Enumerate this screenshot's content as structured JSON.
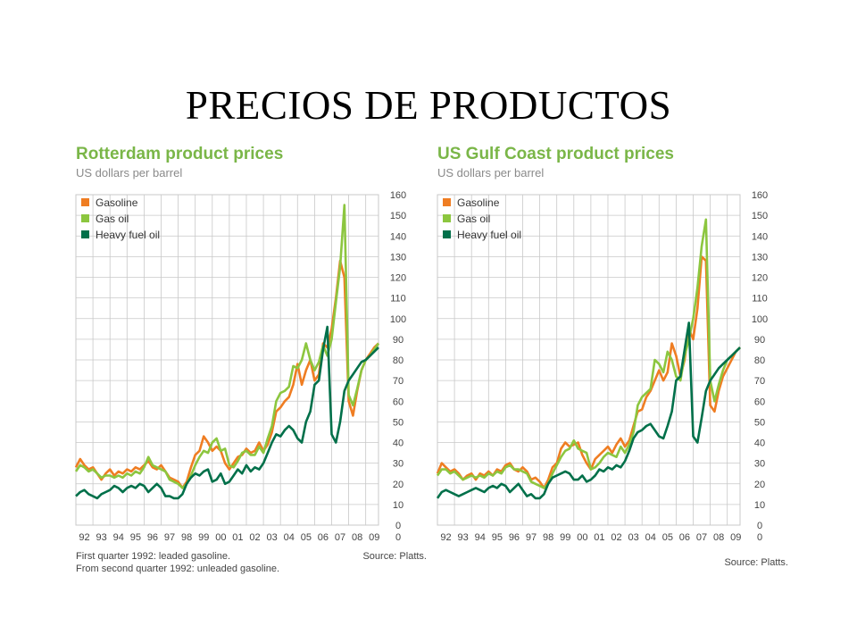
{
  "slide": {
    "title": "PRECIOS DE PRODUCTOS"
  },
  "colors": {
    "gasoline": "#ef7d22",
    "gas_oil": "#8cc63f",
    "heavy_fuel_oil": "#00704a",
    "title_green": "#7ab648",
    "grid": "#c8c8c8"
  },
  "chart_data": [
    {
      "type": "line",
      "title": "Rotterdam product prices",
      "subtitle": "US dollars per barrel",
      "ylim": [
        0,
        160
      ],
      "yticks": [
        160,
        150,
        140,
        130,
        120,
        110,
        100,
        90,
        80,
        70,
        60,
        50,
        40,
        30,
        20,
        10,
        0
      ],
      "xlim": [
        1992,
        2009.75
      ],
      "xtick_labels": [
        "92",
        "93",
        "94",
        "95",
        "96",
        "97",
        "98",
        "99",
        "00",
        "01",
        "02",
        "03",
        "04",
        "05",
        "06",
        "07",
        "08",
        "09"
      ],
      "legend": [
        "Gasoline",
        "Gas oil",
        "Heavy fuel oil"
      ],
      "legend_position": "top-left",
      "grid": true,
      "notes": [
        "First quarter 1992: leaded gasoline.",
        "From second quarter 1992: unleaded gasoline."
      ],
      "source": "Source: Platts.",
      "series": [
        {
          "name": "Gasoline",
          "color_key": "gasoline",
          "x": [
            1992,
            1992.25,
            1992.5,
            1992.75,
            1993,
            1993.25,
            1993.5,
            1993.75,
            1994,
            1994.25,
            1994.5,
            1994.75,
            1995,
            1995.25,
            1995.5,
            1995.75,
            1996,
            1996.25,
            1996.5,
            1996.75,
            1997,
            1997.25,
            1997.5,
            1997.75,
            1998,
            1998.25,
            1998.5,
            1998.75,
            1999,
            1999.25,
            1999.5,
            1999.75,
            2000,
            2000.25,
            2000.5,
            2000.75,
            2001,
            2001.25,
            2001.5,
            2001.75,
            2002,
            2002.25,
            2002.5,
            2002.75,
            2003,
            2003.25,
            2003.5,
            2003.75,
            2004,
            2004.25,
            2004.5,
            2004.75,
            2005,
            2005.25,
            2005.5,
            2005.75,
            2006,
            2006.25,
            2006.5,
            2006.75,
            2007,
            2007.25,
            2007.5,
            2007.75,
            2008,
            2008.25,
            2008.5,
            2008.75,
            2009,
            2009.25,
            2009.5,
            2009.75
          ],
          "values": [
            28,
            32,
            29,
            27,
            28,
            25,
            22,
            25,
            27,
            24,
            26,
            25,
            27,
            26,
            28,
            27,
            29,
            31,
            28,
            27,
            29,
            26,
            23,
            22,
            21,
            18,
            21,
            28,
            34,
            36,
            43,
            40,
            36,
            38,
            36,
            30,
            27,
            30,
            33,
            34,
            37,
            35,
            36,
            40,
            36,
            39,
            45,
            55,
            57,
            60,
            62,
            68,
            78,
            68,
            75,
            80,
            70,
            73,
            88,
            86,
            95,
            110,
            128,
            120,
            60,
            53,
            65,
            75,
            80,
            83,
            86,
            88
          ]
        },
        {
          "name": "Gas oil",
          "color_key": "gas_oil",
          "x": [
            1992,
            1992.25,
            1992.5,
            1992.75,
            1993,
            1993.25,
            1993.5,
            1993.75,
            1994,
            1994.25,
            1994.5,
            1994.75,
            1995,
            1995.25,
            1995.5,
            1995.75,
            1996,
            1996.25,
            1996.5,
            1996.75,
            1997,
            1997.25,
            1997.5,
            1997.75,
            1998,
            1998.25,
            1998.5,
            1998.75,
            1999,
            1999.25,
            1999.5,
            1999.75,
            2000,
            2000.25,
            2000.5,
            2000.75,
            2001,
            2001.25,
            2001.5,
            2001.75,
            2002,
            2002.25,
            2002.5,
            2002.75,
            2003,
            2003.25,
            2003.5,
            2003.75,
            2004,
            2004.25,
            2004.5,
            2004.75,
            2005,
            2005.25,
            2005.5,
            2005.75,
            2006,
            2006.25,
            2006.5,
            2006.75,
            2007,
            2007.25,
            2007.5,
            2007.75,
            2008,
            2008.25,
            2008.5,
            2008.75,
            2009,
            2009.25,
            2009.5,
            2009.75
          ],
          "values": [
            26,
            29,
            28,
            26,
            27,
            25,
            23,
            24,
            24,
            23,
            24,
            23,
            25,
            24,
            26,
            25,
            28,
            33,
            29,
            28,
            27,
            26,
            22,
            21,
            20,
            18,
            20,
            24,
            29,
            33,
            36,
            35,
            40,
            42,
            36,
            37,
            29,
            28,
            31,
            35,
            36,
            34,
            34,
            38,
            35,
            42,
            48,
            60,
            64,
            65,
            67,
            77,
            76,
            80,
            88,
            80,
            75,
            79,
            87,
            82,
            90,
            108,
            125,
            155,
            63,
            58,
            66,
            75,
            80,
            82,
            85,
            88
          ]
        },
        {
          "name": "Heavy fuel oil",
          "color_key": "heavy_fuel_oil",
          "x": [
            1992,
            1992.25,
            1992.5,
            1992.75,
            1993,
            1993.25,
            1993.5,
            1993.75,
            1994,
            1994.25,
            1994.5,
            1994.75,
            1995,
            1995.25,
            1995.5,
            1995.75,
            1996,
            1996.25,
            1996.5,
            1996.75,
            1997,
            1997.25,
            1997.5,
            1997.75,
            1998,
            1998.25,
            1998.5,
            1998.75,
            1999,
            1999.25,
            1999.5,
            1999.75,
            2000,
            2000.25,
            2000.5,
            2000.75,
            2001,
            2001.25,
            2001.5,
            2001.75,
            2002,
            2002.25,
            2002.5,
            2002.75,
            2003,
            2003.25,
            2003.5,
            2003.75,
            2004,
            2004.25,
            2004.5,
            2004.75,
            2005,
            2005.25,
            2005.5,
            2005.75,
            2006,
            2006.25,
            2006.5,
            2006.75,
            2007,
            2007.25,
            2007.5,
            2007.75,
            2008,
            2008.25,
            2008.5,
            2008.75,
            2009,
            2009.25,
            2009.5,
            2009.75
          ],
          "values": [
            14,
            16,
            17,
            15,
            14,
            13,
            15,
            16,
            17,
            19,
            18,
            16,
            18,
            19,
            18,
            20,
            19,
            16,
            18,
            20,
            18,
            14,
            14,
            13,
            13,
            15,
            20,
            23,
            25,
            24,
            26,
            27,
            21,
            22,
            25,
            20,
            21,
            24,
            27,
            25,
            29,
            26,
            28,
            27,
            30,
            35,
            40,
            44,
            43,
            46,
            48,
            46,
            42,
            40,
            50,
            55,
            68,
            70,
            85,
            96,
            44,
            40,
            50,
            65,
            70,
            73,
            76,
            79,
            80,
            82,
            84,
            86
          ]
        }
      ]
    },
    {
      "type": "line",
      "title": "US Gulf Coast product prices",
      "subtitle": "US dollars per barrel",
      "ylim": [
        0,
        160
      ],
      "yticks": [
        160,
        150,
        140,
        130,
        120,
        110,
        100,
        90,
        80,
        70,
        60,
        50,
        40,
        30,
        20,
        10,
        0
      ],
      "xlim": [
        1992,
        2009.75
      ],
      "xtick_labels": [
        "92",
        "93",
        "94",
        "95",
        "96",
        "97",
        "98",
        "99",
        "00",
        "01",
        "02",
        "03",
        "04",
        "05",
        "06",
        "07",
        "08",
        "09"
      ],
      "legend": [
        "Gasoline",
        "Gas oil",
        "Heavy fuel oil"
      ],
      "legend_position": "top-left",
      "grid": true,
      "notes": [],
      "source": "Source: Platts.",
      "series": [
        {
          "name": "Gasoline",
          "color_key": "gasoline",
          "x": [
            1992,
            1992.25,
            1992.5,
            1992.75,
            1993,
            1993.25,
            1993.5,
            1993.75,
            1994,
            1994.25,
            1994.5,
            1994.75,
            1995,
            1995.25,
            1995.5,
            1995.75,
            1996,
            1996.25,
            1996.5,
            1996.75,
            1997,
            1997.25,
            1997.5,
            1997.75,
            1998,
            1998.25,
            1998.5,
            1998.75,
            1999,
            1999.25,
            1999.5,
            1999.75,
            2000,
            2000.25,
            2000.5,
            2000.75,
            2001,
            2001.25,
            2001.5,
            2001.75,
            2002,
            2002.25,
            2002.5,
            2002.75,
            2003,
            2003.25,
            2003.5,
            2003.75,
            2004,
            2004.25,
            2004.5,
            2004.75,
            2005,
            2005.25,
            2005.5,
            2005.75,
            2006,
            2006.25,
            2006.5,
            2006.75,
            2007,
            2007.25,
            2007.5,
            2007.75,
            2008,
            2008.25,
            2008.5,
            2008.75,
            2009,
            2009.25,
            2009.5,
            2009.75
          ],
          "values": [
            25,
            30,
            28,
            26,
            27,
            25,
            22,
            24,
            25,
            22,
            25,
            24,
            26,
            24,
            27,
            26,
            29,
            30,
            27,
            26,
            28,
            26,
            22,
            23,
            21,
            18,
            22,
            28,
            30,
            37,
            40,
            38,
            39,
            40,
            34,
            30,
            27,
            32,
            34,
            36,
            38,
            35,
            39,
            42,
            38,
            41,
            48,
            55,
            56,
            62,
            65,
            70,
            75,
            70,
            74,
            88,
            82,
            72,
            80,
            95,
            90,
            105,
            130,
            128,
            58,
            55,
            65,
            72,
            76,
            80,
            84,
            86
          ]
        },
        {
          "name": "Gas oil",
          "color_key": "gas_oil",
          "x": [
            1992,
            1992.25,
            1992.5,
            1992.75,
            1993,
            1993.25,
            1993.5,
            1993.75,
            1994,
            1994.25,
            1994.5,
            1994.75,
            1995,
            1995.25,
            1995.5,
            1995.75,
            1996,
            1996.25,
            1996.5,
            1996.75,
            1997,
            1997.25,
            1997.5,
            1997.75,
            1998,
            1998.25,
            1998.5,
            1998.75,
            1999,
            1999.25,
            1999.5,
            1999.75,
            2000,
            2000.25,
            2000.5,
            2000.75,
            2001,
            2001.25,
            2001.5,
            2001.75,
            2002,
            2002.25,
            2002.5,
            2002.75,
            2003,
            2003.25,
            2003.5,
            2003.75,
            2004,
            2004.25,
            2004.5,
            2004.75,
            2005,
            2005.25,
            2005.5,
            2005.75,
            2006,
            2006.25,
            2006.5,
            2006.75,
            2007,
            2007.25,
            2007.5,
            2007.75,
            2008,
            2008.25,
            2008.5,
            2008.75,
            2009,
            2009.25,
            2009.5,
            2009.75
          ],
          "values": [
            24,
            27,
            27,
            25,
            26,
            24,
            22,
            23,
            24,
            23,
            24,
            23,
            25,
            24,
            26,
            25,
            28,
            29,
            27,
            27,
            26,
            25,
            21,
            20,
            19,
            18,
            20,
            25,
            29,
            33,
            36,
            37,
            41,
            37,
            36,
            35,
            27,
            28,
            30,
            33,
            35,
            34,
            33,
            38,
            35,
            39,
            45,
            58,
            62,
            64,
            66,
            80,
            78,
            74,
            84,
            80,
            72,
            70,
            82,
            90,
            100,
            115,
            135,
            148,
            70,
            60,
            68,
            75,
            80,
            82,
            84,
            86
          ]
        },
        {
          "name": "Heavy fuel oil",
          "color_key": "heavy_fuel_oil",
          "x": [
            1992,
            1992.25,
            1992.5,
            1992.75,
            1993,
            1993.25,
            1993.5,
            1993.75,
            1994,
            1994.25,
            1994.5,
            1994.75,
            1995,
            1995.25,
            1995.5,
            1995.75,
            1996,
            1996.25,
            1996.5,
            1996.75,
            1997,
            1997.25,
            1997.5,
            1997.75,
            1998,
            1998.25,
            1998.5,
            1998.75,
            1999,
            1999.25,
            1999.5,
            1999.75,
            2000,
            2000.25,
            2000.5,
            2000.75,
            2001,
            2001.25,
            2001.5,
            2001.75,
            2002,
            2002.25,
            2002.5,
            2002.75,
            2003,
            2003.25,
            2003.5,
            2003.75,
            2004,
            2004.25,
            2004.5,
            2004.75,
            2005,
            2005.25,
            2005.5,
            2005.75,
            2006,
            2006.25,
            2006.5,
            2006.75,
            2007,
            2007.25,
            2007.5,
            2007.75,
            2008,
            2008.25,
            2008.5,
            2008.75,
            2009,
            2009.25,
            2009.5,
            2009.75
          ],
          "values": [
            13,
            16,
            17,
            16,
            15,
            14,
            15,
            16,
            17,
            18,
            17,
            16,
            18,
            19,
            18,
            20,
            19,
            16,
            18,
            20,
            17,
            14,
            15,
            13,
            13,
            15,
            20,
            23,
            24,
            25,
            26,
            25,
            22,
            22,
            24,
            21,
            22,
            24,
            27,
            26,
            28,
            27,
            29,
            28,
            31,
            36,
            42,
            45,
            46,
            48,
            49,
            46,
            43,
            42,
            48,
            55,
            70,
            72,
            85,
            98,
            43,
            40,
            52,
            65,
            70,
            73,
            76,
            78,
            80,
            82,
            84,
            86
          ]
        }
      ]
    }
  ]
}
